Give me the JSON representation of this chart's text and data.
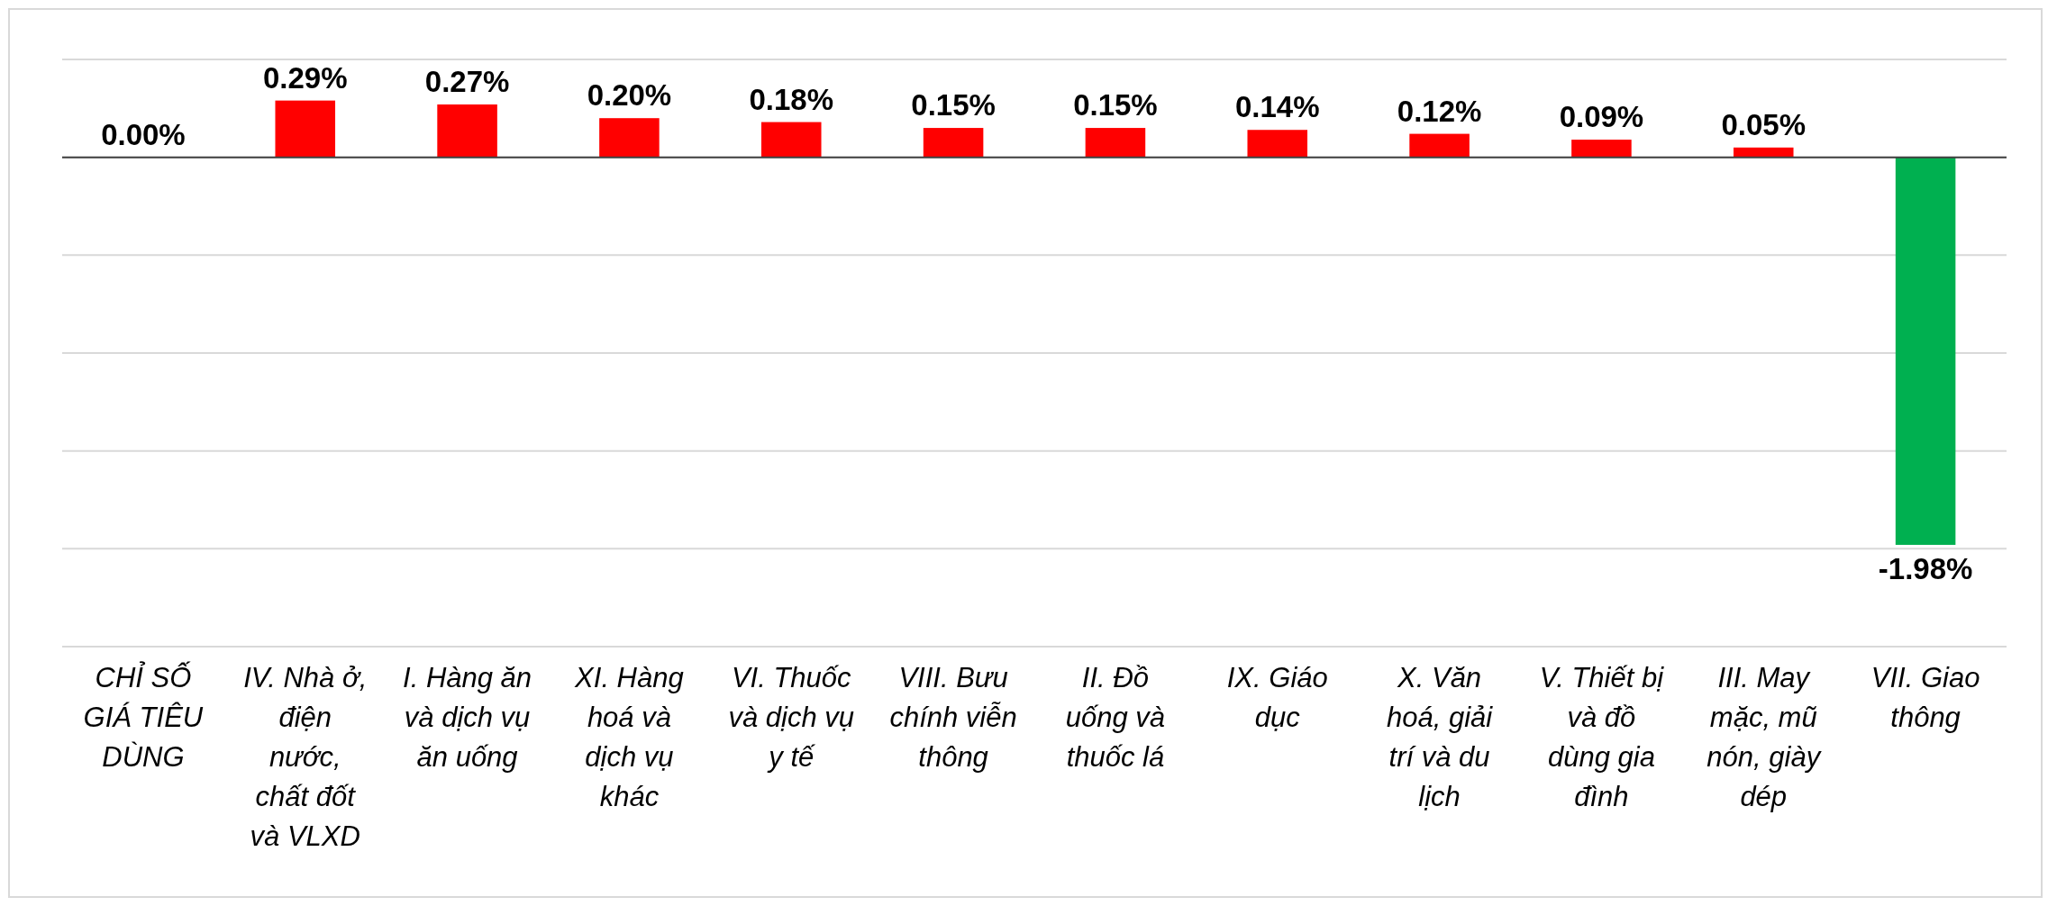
{
  "chart_data": {
    "type": "bar",
    "categories": [
      "CHỈ SỐ GIÁ TIÊU DÙNG",
      "IV. Nhà ở, điện nước, chất đốt và VLXD",
      "I. Hàng ăn và dịch vụ ăn uống",
      "XI. Hàng hoá và dịch vụ khác",
      "VI. Thuốc và dịch vụ y tế",
      "VIII. Bưu chính viễn thông",
      "II. Đồ uống và thuốc lá",
      "IX. Giáo dục",
      "X. Văn hoá, giải trí và du lịch",
      "V. Thiết bị và đồ dùng gia đình",
      "III. May mặc, mũ nón, giày dép",
      "VII. Giao thông"
    ],
    "values": [
      0,
      0.29,
      0.27,
      0.2,
      0.18,
      0.15,
      0.15,
      0.14,
      0.12,
      0.09,
      0.05,
      -1.98
    ],
    "colors": [
      "#ff0000",
      "#ff0000",
      "#ff0000",
      "#ff0000",
      "#ff0000",
      "#ff0000",
      "#ff0000",
      "#ff0000",
      "#ff0000",
      "#ff0000",
      "#ff0000",
      "#00b050"
    ],
    "value_labels": [
      "0.00%",
      "0.29%",
      "0.27%",
      "0.20%",
      "0.18%",
      "0.15%",
      "0.15%",
      "0.14%",
      "0.12%",
      "0.09%",
      "0.05%",
      "-1.98%"
    ],
    "ylim": [
      -2.5,
      0.5
    ],
    "yticks": [
      {
        "value": -2.5,
        "label": null
      },
      {
        "value": -2,
        "label": null
      },
      {
        "value": -1.5,
        "label": null
      },
      {
        "value": -1,
        "label": null
      },
      {
        "value": -0.5,
        "label": null
      },
      {
        "value": 0,
        "label": null
      },
      {
        "value": 0.5,
        "label": null
      }
    ],
    "grid": "y",
    "tick_labels": "x"
  }
}
